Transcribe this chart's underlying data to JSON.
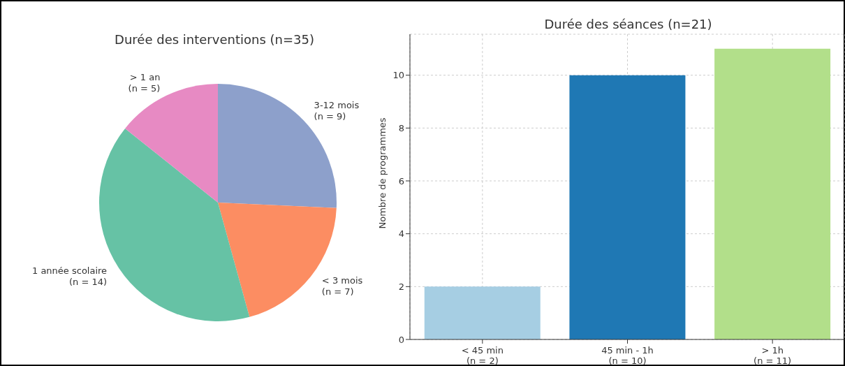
{
  "chart_data": [
    {
      "type": "pie",
      "title": "Durée des interventions (n=35)",
      "categories": [
        "3-12 mois\n(n = 9)",
        "< 3 mois\n(n = 7)",
        "1 année scolaire\n(n = 14)",
        "> 1 an\n(n = 5)"
      ],
      "values": [
        9,
        7,
        14,
        5
      ],
      "colors": [
        "#8da0cb",
        "#fc8d62",
        "#66c2a5",
        "#e78ac3"
      ]
    },
    {
      "type": "bar",
      "title": "Durée des séances (n=21)",
      "ylabel": "Nombre de programmes",
      "categories": [
        "< 45 min\n(n = 2)",
        "45 min - 1h\n(n = 10)",
        "> 1h\n(n = 11)"
      ],
      "values": [
        2,
        10,
        11
      ],
      "colors": [
        "#a6cee3",
        "#1f78b4",
        "#b2df8a"
      ],
      "ylim": [
        0,
        11.55
      ],
      "yticks": [
        0,
        2,
        4,
        6,
        8,
        10
      ],
      "grid": true
    }
  ]
}
